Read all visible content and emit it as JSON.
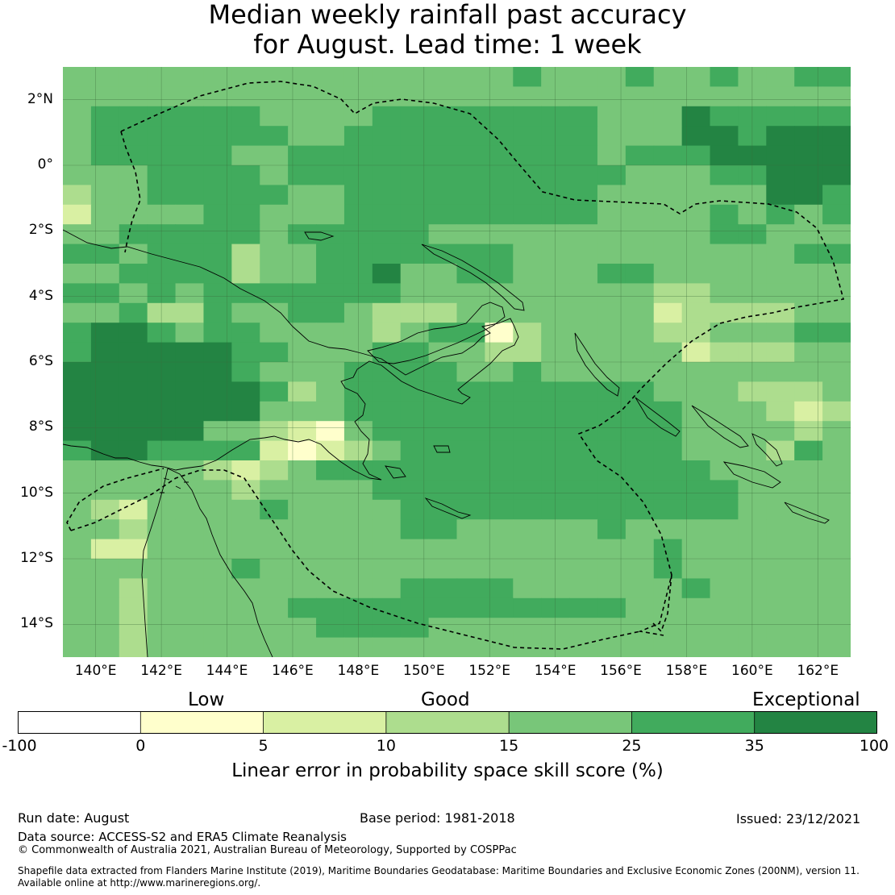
{
  "title_line1": "Median weekly rainfall past accuracy",
  "title_line2": "for August. Lead time: 1 week",
  "lat_labels": [
    "2°N",
    "0°",
    "2°S",
    "4°S",
    "6°S",
    "8°S",
    "10°S",
    "12°S",
    "14°S"
  ],
  "lon_labels": [
    "140°E",
    "142°E",
    "144°E",
    "146°E",
    "148°E",
    "150°E",
    "152°E",
    "154°E",
    "156°E",
    "158°E",
    "160°E",
    "162°E"
  ],
  "categories": {
    "low": "Low",
    "good": "Good",
    "exceptional": "Exceptional"
  },
  "colorbar": {
    "ticks": [
      "-100",
      "0",
      "5",
      "10",
      "15",
      "25",
      "35",
      "100"
    ],
    "colors": [
      "#ffffff",
      "#ffffcc",
      "#d9f0a3",
      "#addd8e",
      "#78c679",
      "#41ab5d",
      "#238443"
    ],
    "caption": "Linear error in probability space skill score (%)"
  },
  "map": {
    "land_color": "none",
    "coastline_color": "#000000",
    "eez_boundary_style": "dashed",
    "grid": true,
    "lon_range": [
      139.0,
      163.0
    ],
    "lat_range": [
      -15.0,
      3.0
    ],
    "cell_size_deg": 0.83,
    "score_grid_categories": [
      "4444444444444444544454454455",
      "4444444444444444444444444444",
      "4555555444455555555444655555",
      "4555555544555555555444665666",
      "4555554455555555555455566666",
      "4445555455555555555544455666",
      "3445555544555555555444444665",
      "2444455444555555555444454545",
      "4455555455555444444444455444",
      "5545553445555555444444444455",
      "4455553445564455444554444444",
      "5545455555554444444443344444",
      "4453354455433344444442333344",
      "5665455444434551344443344455",
      "5666665544455443344444233344",
      "6666665444555544544444444444",
      "6666666534555555555554443334",
      "6666666444555555555555444323",
      "6666644321455555555555444434",
      "5665555212345555555555444354",
      "4444432345555555555555544444",
      "4444443444455555555555554444",
      "4324444544445555555555554444",
      "4434444444445544444544444444",
      "4224444444444444444445444444",
      "4444445444444444444445444444",
      "4434444444445555444444544444",
      "4434444455555555555544444444",
      "4434444445555444444444444444",
      "4434444444444444444444444444"
    ]
  },
  "footer": {
    "run_date": "Run date: August",
    "base_period": "Base period: 1981-2018",
    "issued": "Issued: 23/12/2021",
    "data_source": "Data source: ACCESS-S2 and ERA5 Climate Reanalysis",
    "copyright": "© Commonwealth of Australia 2021, Australian Bureau of Meteorology, Supported by COSPPac",
    "shapefile_line1": "Shapefile data extracted from Flanders Marine Institute (2019), Maritime Boundaries Geodatabase: Maritime Boundaries and Exclusive Economic Zones (200NM), version 11.",
    "shapefile_line2": "Available online at http://www.marineregions.org/."
  }
}
